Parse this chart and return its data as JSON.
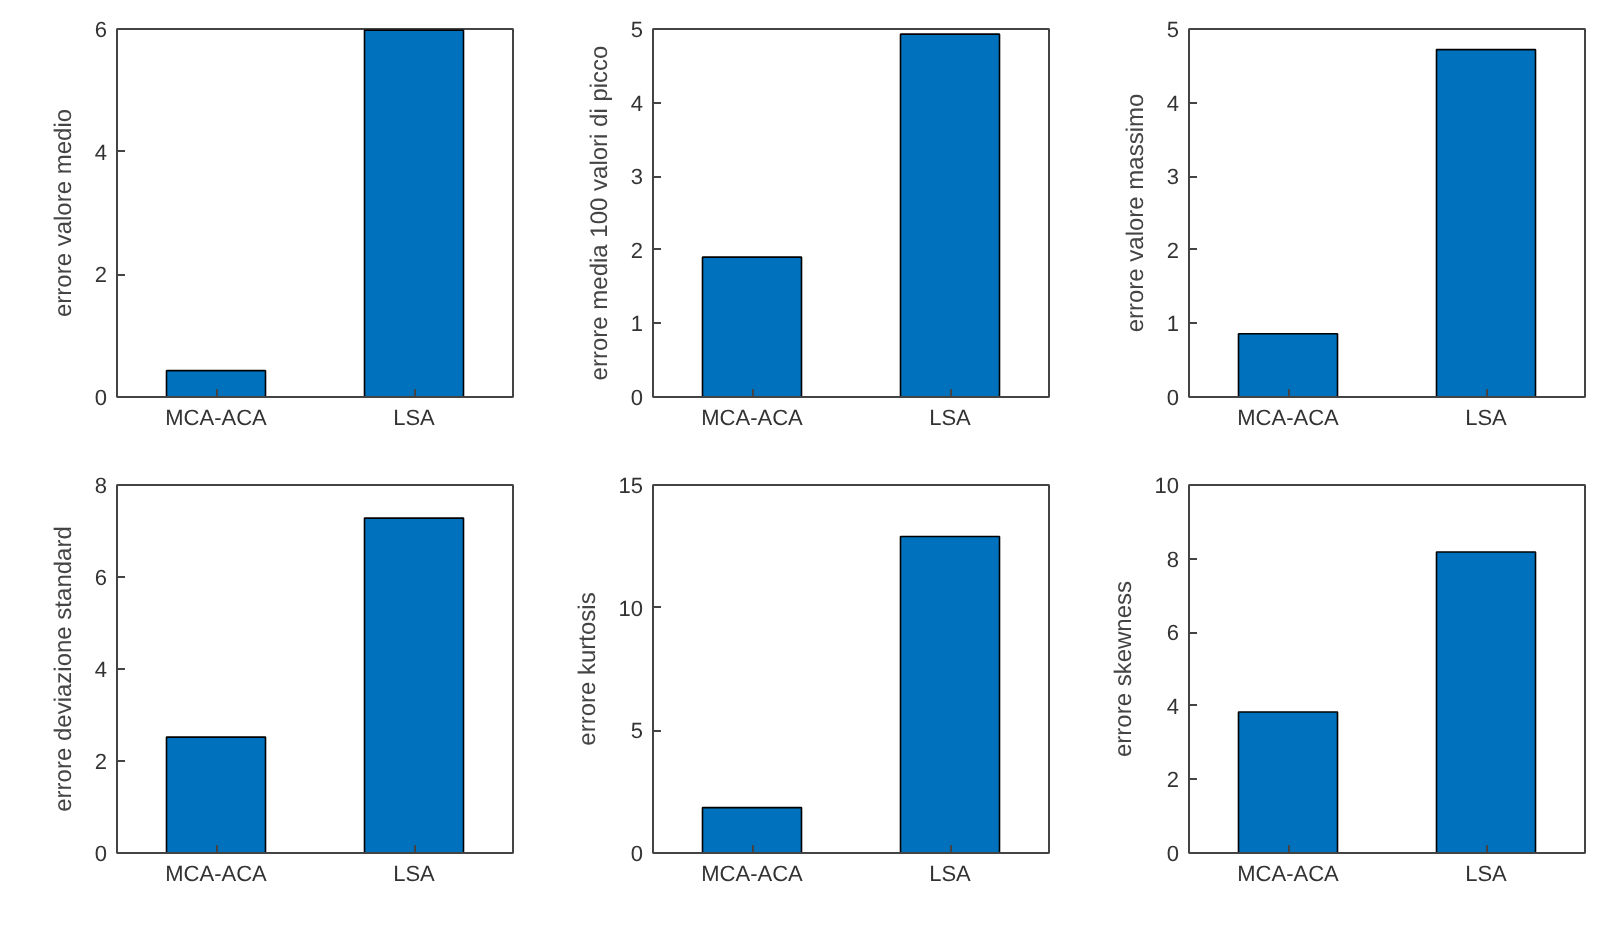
{
  "chart_data": [
    {
      "type": "bar",
      "categories": [
        "MCA-ACA",
        "LSA"
      ],
      "values": [
        0.43,
        5.98
      ],
      "color": "#0072bd",
      "ylabel": "errore valore medio",
      "ylim": [
        0,
        6
      ],
      "yticks": [
        0,
        2,
        4,
        6
      ]
    },
    {
      "type": "bar",
      "categories": [
        "MCA-ACA",
        "LSA"
      ],
      "values": [
        1.9,
        4.93
      ],
      "color": "#0072bd",
      "ylabel": "errore media 100 valori di picco",
      "ylim": [
        0,
        5
      ],
      "yticks": [
        0,
        1,
        2,
        3,
        4,
        5
      ]
    },
    {
      "type": "bar",
      "categories": [
        "MCA-ACA",
        "LSA"
      ],
      "values": [
        0.86,
        4.72
      ],
      "color": "#0072bd",
      "ylabel": "errore valore massimo",
      "ylim": [
        0,
        5
      ],
      "yticks": [
        0,
        1,
        2,
        3,
        4,
        5
      ]
    },
    {
      "type": "bar",
      "categories": [
        "MCA-ACA",
        "LSA"
      ],
      "values": [
        2.52,
        7.28
      ],
      "color": "#0072bd",
      "ylabel": "errore deviazione standard",
      "ylim": [
        0,
        8
      ],
      "yticks": [
        0,
        2,
        4,
        6,
        8
      ]
    },
    {
      "type": "bar",
      "categories": [
        "MCA-ACA",
        "LSA"
      ],
      "values": [
        1.85,
        12.9
      ],
      "color": "#0072bd",
      "ylabel": "errore kurtosis",
      "ylim": [
        0,
        15
      ],
      "yticks": [
        0,
        5,
        10,
        15
      ]
    },
    {
      "type": "bar",
      "categories": [
        "MCA-ACA",
        "LSA"
      ],
      "values": [
        3.83,
        8.18
      ],
      "color": "#0072bd",
      "ylabel": "errore skewness",
      "ylim": [
        0,
        10
      ],
      "yticks": [
        0,
        2,
        4,
        6,
        8,
        10
      ]
    }
  ]
}
